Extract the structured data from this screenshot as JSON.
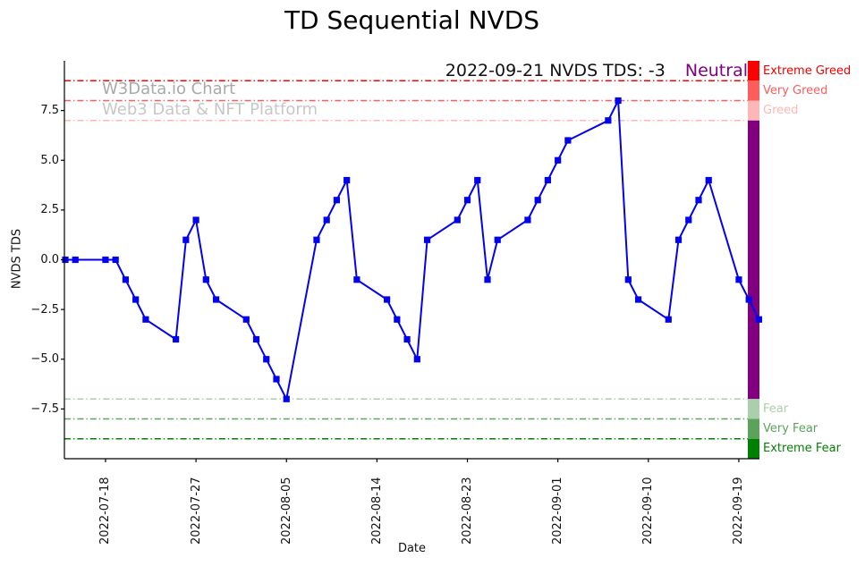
{
  "title": "TD Sequential NVDS",
  "watermark": {
    "line1": "W3Data.io Chart",
    "line2": "Web3 Data & NFT Platform"
  },
  "annotation": {
    "text": "2022-09-21 NVDS TDS: -3",
    "status": "Neutral",
    "status_color": "#800080"
  },
  "chart_data": {
    "type": "line",
    "title": "TD Sequential NVDS",
    "xlabel": "Date",
    "ylabel": "NVDS TDS",
    "ylim": [
      -10,
      10
    ],
    "grid": false,
    "legend": "none",
    "line_color": "#0202ee",
    "marker": "square",
    "x": [
      "2022-07-14",
      "2022-07-15",
      "2022-07-18",
      "2022-07-19",
      "2022-07-20",
      "2022-07-21",
      "2022-07-22",
      "2022-07-25",
      "2022-07-26",
      "2022-07-27",
      "2022-07-28",
      "2022-07-29",
      "2022-08-01",
      "2022-08-02",
      "2022-08-03",
      "2022-08-04",
      "2022-08-05",
      "2022-08-08",
      "2022-08-09",
      "2022-08-10",
      "2022-08-11",
      "2022-08-12",
      "2022-08-15",
      "2022-08-16",
      "2022-08-17",
      "2022-08-18",
      "2022-08-19",
      "2022-08-22",
      "2022-08-23",
      "2022-08-24",
      "2022-08-25",
      "2022-08-26",
      "2022-08-29",
      "2022-08-30",
      "2022-08-31",
      "2022-09-01",
      "2022-09-02",
      "2022-09-06",
      "2022-09-07",
      "2022-09-08",
      "2022-09-09",
      "2022-09-12",
      "2022-09-13",
      "2022-09-14",
      "2022-09-15",
      "2022-09-16",
      "2022-09-19",
      "2022-09-20",
      "2022-09-21"
    ],
    "values": [
      0,
      0,
      0,
      0,
      -1,
      -2,
      -3,
      -4,
      1,
      2,
      -1,
      -2,
      -3,
      -4,
      -5,
      -6,
      -7,
      1,
      2,
      3,
      4,
      -1,
      -2,
      -3,
      -4,
      -5,
      1,
      2,
      3,
      4,
      -1,
      1,
      2,
      3,
      4,
      5,
      6,
      7,
      8,
      -1,
      -2,
      -3,
      1,
      2,
      3,
      4,
      -1,
      -2,
      -3
    ],
    "x_ticks": [
      "2022-07-18",
      "2022-07-27",
      "2022-08-05",
      "2022-08-14",
      "2022-08-23",
      "2022-09-01",
      "2022-09-10",
      "2022-09-19"
    ],
    "y_ticks": [
      7.5,
      5.0,
      2.5,
      0.0,
      -2.5,
      -5.0,
      -7.5
    ],
    "y_tick_labels": [
      "7.5",
      "5.0",
      "2.5",
      "0.0",
      "−2.5",
      "−5.0",
      "−7.5"
    ],
    "thresholds": [
      {
        "label": "Extreme Greed",
        "value": 9,
        "color": "#ff0000",
        "label_color": "#f00000"
      },
      {
        "label": "Very Greed",
        "value": 8,
        "color": "#ff5c5c",
        "label_color": "#ff5c5c"
      },
      {
        "label": "Greed",
        "value": 7,
        "color": "#ffb6b6",
        "label_color": "#ffb6b6"
      },
      {
        "label": "Fear",
        "value": -7,
        "color": "#abceab",
        "label_color": "#abceab"
      },
      {
        "label": "Very Fear",
        "value": -8,
        "color": "#5ba35b",
        "label_color": "#5ba35b"
      },
      {
        "label": "Extreme Fear",
        "value": -9,
        "color": "#008000",
        "label_color": "#068006"
      }
    ],
    "colorbar": [
      {
        "from": 10,
        "to": 9,
        "color": "#ff0000"
      },
      {
        "from": 9,
        "to": 8,
        "color": "#ff5c5c"
      },
      {
        "from": 8,
        "to": 7,
        "color": "#ffb6b6"
      },
      {
        "from": 7,
        "to": -7,
        "color": "#800080"
      },
      {
        "from": -7,
        "to": -8,
        "color": "#abceab"
      },
      {
        "from": -8,
        "to": -9,
        "color": "#5ba35b"
      },
      {
        "from": -9,
        "to": -10,
        "color": "#008000"
      }
    ]
  }
}
